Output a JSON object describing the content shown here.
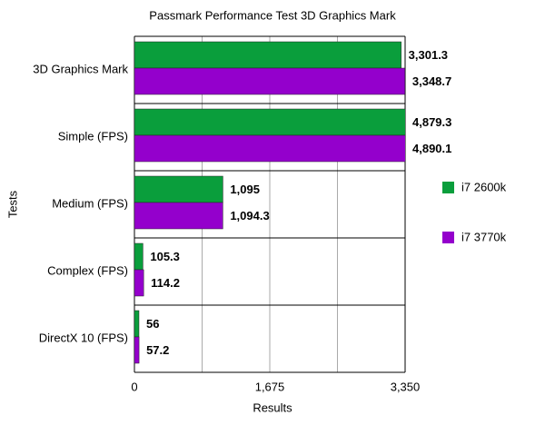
{
  "chart_data": {
    "type": "hbar",
    "title": "Passmark Performance Test 3D Graphics Mark",
    "x_label": "Results",
    "y_label": "Tests",
    "categories": [
      "3D Graphics Mark",
      "Simple (FPS)",
      "Medium (FPS)",
      "Complex (FPS)",
      "DirectX 10 (FPS)"
    ],
    "series": [
      {
        "name": "i7 2600k",
        "color": "#0a9e3c",
        "values": [
          3301.3,
          4879.3,
          1095,
          105.3,
          56
        ],
        "value_labels": [
          "3,301.3",
          "4,879.3",
          "1,095",
          "105.3",
          "56"
        ]
      },
      {
        "name": "i7 3770k",
        "color": "#9400cc",
        "values": [
          3348.7,
          4890.1,
          1094.3,
          114.2,
          57.2
        ],
        "value_labels": [
          "3,348.7",
          "4,890.1",
          "1,094.3",
          "114.2",
          "57.2"
        ]
      }
    ],
    "xlim": [
      0,
      3350
    ],
    "xticks": [
      0,
      {
        "value": 1675,
        "label": "1,675"
      },
      {
        "value": 3350,
        "label": "3,350"
      }
    ],
    "x_minor_grid": [
      837.5,
      2512.5
    ],
    "grid": true,
    "legend": "right"
  }
}
